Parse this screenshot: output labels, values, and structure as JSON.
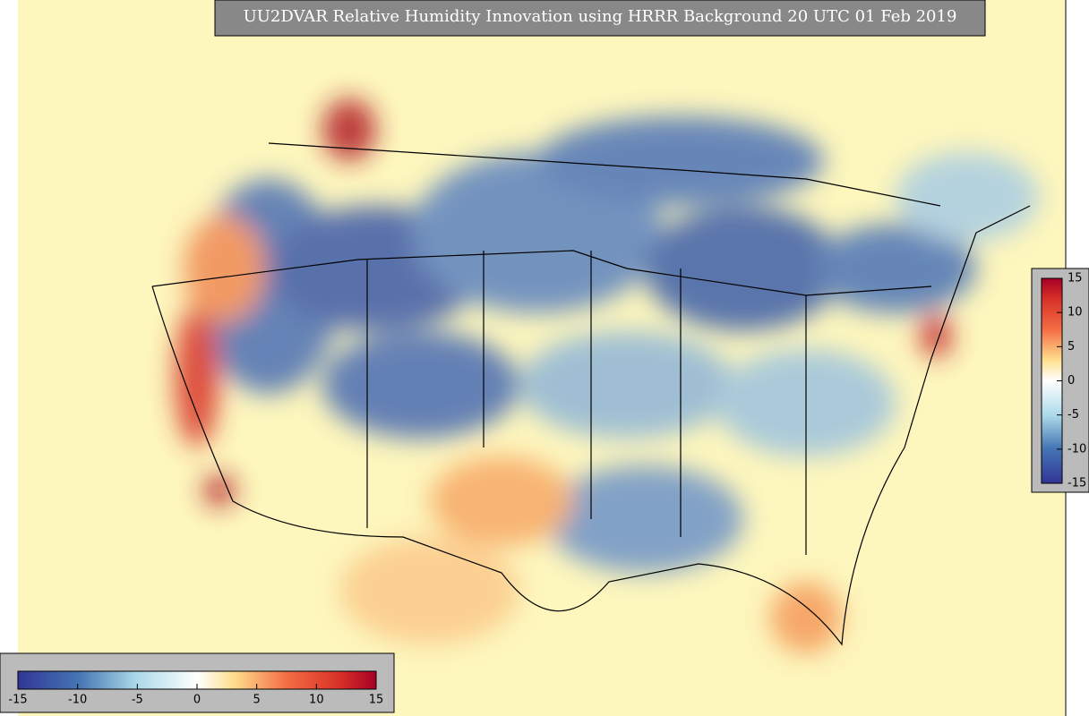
{
  "title": "UU2DVAR Relative Humidity Innovation using HRRR Background 20 UTC 01 Feb 2019",
  "colorbar": {
    "range": [
      -15,
      15
    ],
    "right_ticks": [
      15,
      10,
      5,
      0,
      -5,
      -10,
      -15
    ],
    "bottom_ticks": [
      -15,
      -10,
      -5,
      0,
      5,
      10,
      15
    ]
  }
}
